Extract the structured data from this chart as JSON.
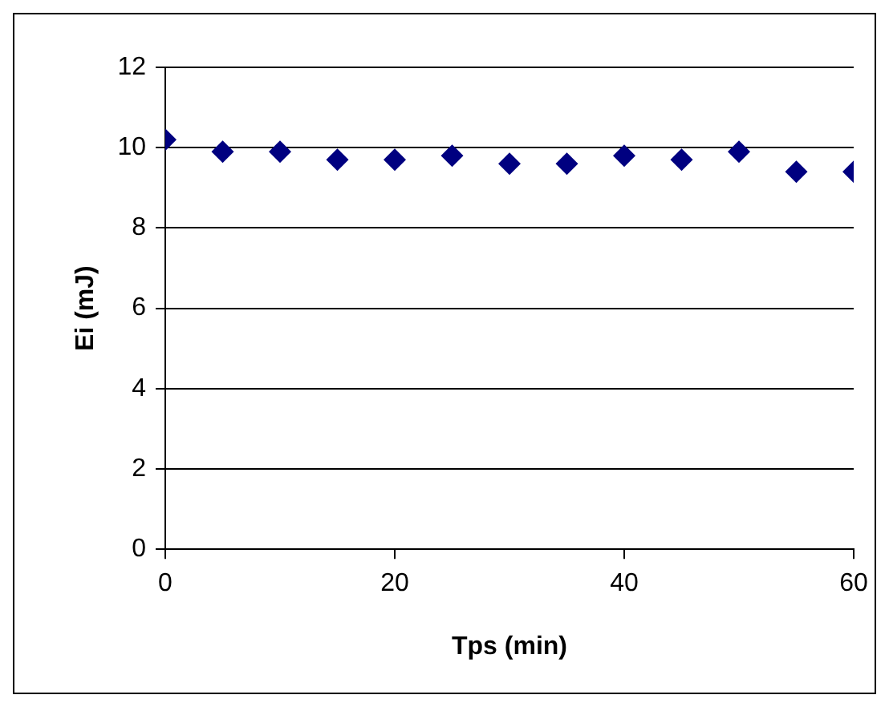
{
  "chart_data": {
    "type": "scatter",
    "xlabel": "Tps (min)",
    "ylabel": "Ei (mJ)",
    "x": [
      0,
      5,
      10,
      15,
      20,
      25,
      30,
      35,
      40,
      45,
      50,
      55,
      60
    ],
    "series": [
      {
        "color": "#000080",
        "values": [
          10.2,
          9.9,
          9.9,
          9.7,
          9.7,
          9.8,
          9.6,
          9.6,
          9.8,
          9.7,
          9.9,
          9.4,
          9.4
        ]
      }
    ],
    "xlim": [
      0,
      60
    ],
    "xticks": [
      0,
      20,
      40,
      60
    ],
    "ylim": [
      0,
      12
    ],
    "yticks": [
      0,
      2,
      4,
      6,
      8,
      10,
      12
    ],
    "grid": "y",
    "marker": "diamond",
    "legend": false
  }
}
